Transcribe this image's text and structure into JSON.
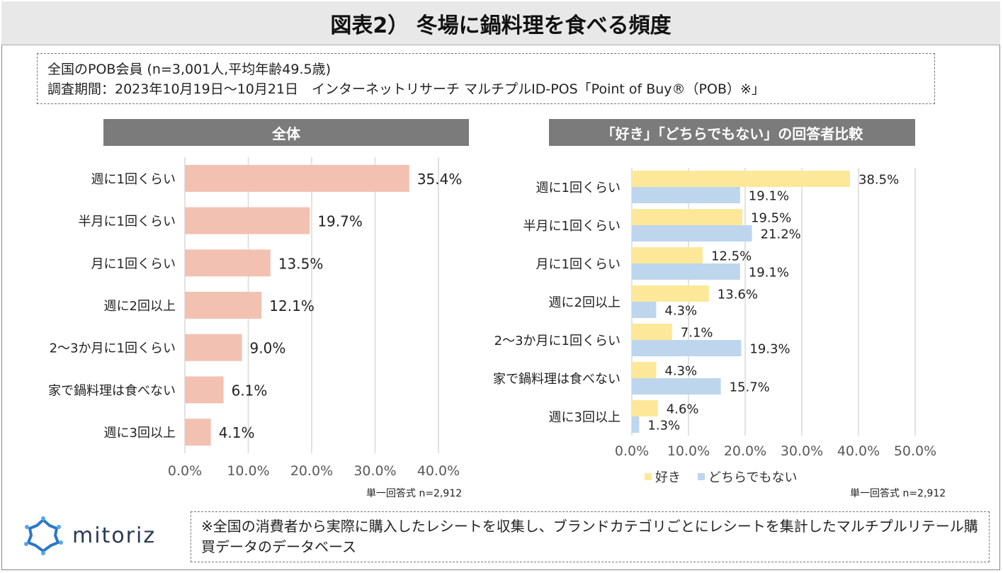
{
  "title": "図表2） 冬場に鍋料理を食べる頻度",
  "info": {
    "line1": "全国のPOB会員 (n=3,001人,平均年齢49.5歳)",
    "line2": "調査期間：2023年10月19日～10月21日　インターネットリサーチ マルチプルID-POS「Point of Buy®（POB）※」"
  },
  "chart_data": [
    {
      "type": "bar",
      "orientation": "horizontal",
      "title": "全体",
      "categories": [
        "週に1回くらい",
        "半月に1回くらい",
        "月に1回くらい",
        "週に2回以上",
        "2～3か月に1回くらい",
        "家で鍋料理は食べない",
        "週に3回以上"
      ],
      "values": [
        35.4,
        19.7,
        13.5,
        12.1,
        9.0,
        6.1,
        4.1
      ],
      "value_labels": [
        "35.4%",
        "19.7%",
        "13.5%",
        "12.1%",
        "9.0%",
        "6.1%",
        "4.1%"
      ],
      "xlim": [
        0,
        40
      ],
      "xticks": [
        "0.0%",
        "10.0%",
        "20.0%",
        "30.0%",
        "40.0%"
      ],
      "color": "#f2c1b2",
      "grid": true,
      "note": "単一回答式  n=2,912"
    },
    {
      "type": "bar",
      "orientation": "horizontal",
      "title": "「好き」「どちらでもない」の回答者比較",
      "categories": [
        "週に1回くらい",
        "半月に1回くらい",
        "月に1回くらい",
        "週に2回以上",
        "2～3か月に1回くらい",
        "家で鍋料理は食べない",
        "週に3回以上"
      ],
      "series": [
        {
          "name": "好き",
          "color": "#fde89a",
          "values": [
            38.5,
            19.5,
            12.5,
            13.6,
            7.1,
            4.3,
            4.6
          ],
          "labels": [
            "38.5%",
            "19.5%",
            "12.5%",
            "13.6%",
            "7.1%",
            "4.3%",
            "4.6%"
          ]
        },
        {
          "name": "どちらでもない",
          "color": "#bdd6ee",
          "values": [
            19.1,
            21.2,
            19.1,
            4.3,
            19.3,
            15.7,
            1.3
          ],
          "labels": [
            "19.1%",
            "21.2%",
            "19.1%",
            "4.3%",
            "19.3%",
            "15.7%",
            "1.3%"
          ]
        }
      ],
      "xlim": [
        0,
        50
      ],
      "xticks": [
        "0.0%",
        "10.0%",
        "20.0%",
        "30.0%",
        "40.0%",
        "50.0%"
      ],
      "grid": true,
      "legend": "bottom",
      "note": "単一回答式  n=2,912"
    }
  ],
  "note_box": "※全国の消費者から実際に購入したレシートを収集し、ブランドカテゴリごとにレシートを集計したマルチプルリテール購買データのデータベース",
  "logo": {
    "text": "mitoriz",
    "icon": "sun-gear-logo-icon"
  }
}
